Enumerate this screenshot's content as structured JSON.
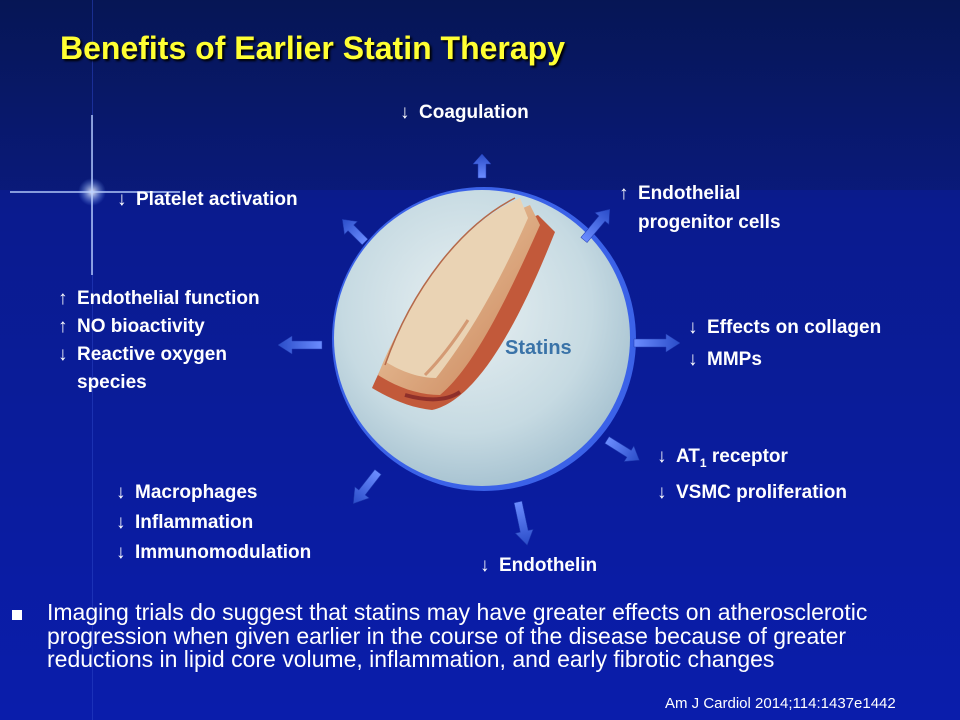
{
  "slide": {
    "title": "Benefits of Earlier Statin Therapy",
    "center_label": "Statins",
    "labels": {
      "coagulation": {
        "arrow": "↓",
        "text": "Coagulation"
      },
      "platelet": {
        "arrow": "↓",
        "text": "Platelet activation"
      },
      "endothelial_progenitor": {
        "arrow": "↑",
        "line1": "Endothelial",
        "line2": "progenitor cells"
      },
      "endothelial_function": {
        "arrow": "↑",
        "text": "Endothelial function"
      },
      "no_bioactivity": {
        "arrow": "↑",
        "text": "NO bioactivity"
      },
      "ros": {
        "arrow": "↓",
        "line1": "Reactive oxygen",
        "line2": "species"
      },
      "collagen": {
        "arrow": "↓",
        "text": "Effects on collagen"
      },
      "mmps": {
        "arrow": "↓",
        "text": "MMPs"
      },
      "at1": {
        "arrow": "↓",
        "pre": "AT",
        "sub": "1",
        "post": " receptor"
      },
      "vsmc": {
        "arrow": "↓",
        "text": "VSMC proliferation"
      },
      "macrophages": {
        "arrow": "↓",
        "text": "Macrophages"
      },
      "inflammation": {
        "arrow": "↓",
        "text": "Inflammation"
      },
      "immunomodulation": {
        "arrow": "↓",
        "text": "Immunomodulation"
      },
      "endothelin": {
        "arrow": "↓",
        "text": "Endothelin"
      }
    },
    "bullet": "Imaging trials do suggest that statins may have greater effects on atherosclerotic progression when given earlier in the course of the disease because of greater reductions in lipid core volume, inflammation, and early fibrotic changes",
    "citation": "Am J Cardiol 2014;114:1437e1442"
  },
  "colors": {
    "title": "#ffff33",
    "background_top": "#0a1a6e",
    "background_bottom": "#0a1aa8",
    "arrow": "#3c64e0",
    "circle": "#cfdfe6"
  }
}
